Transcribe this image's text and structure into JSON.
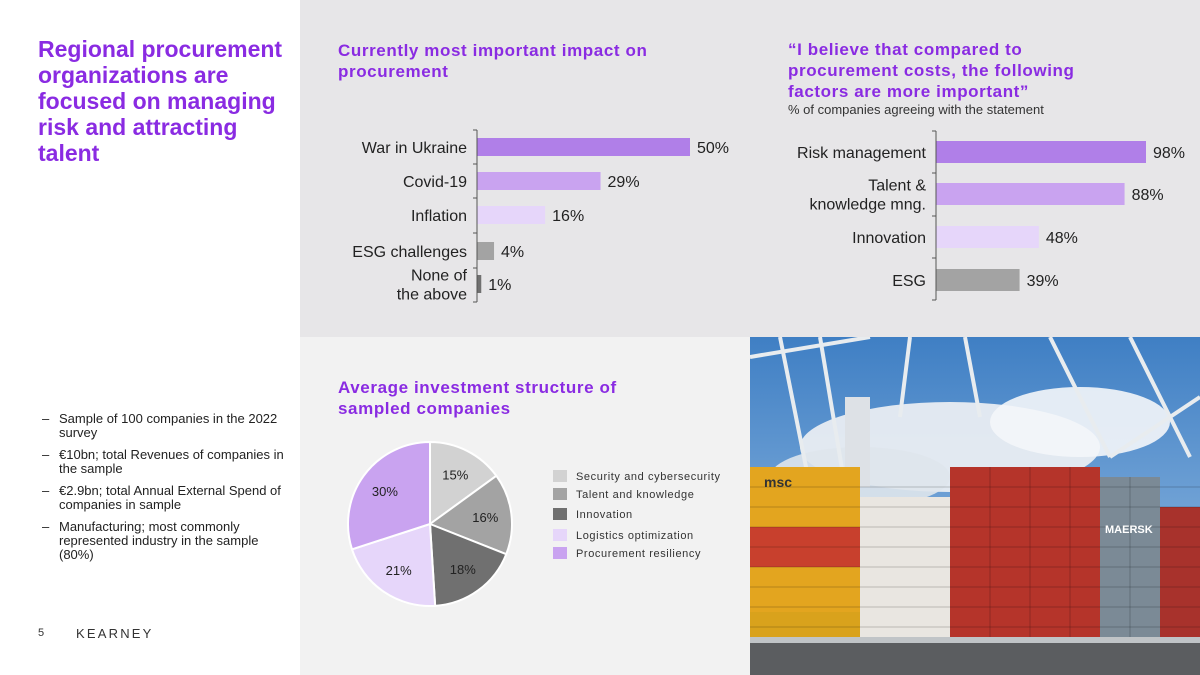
{
  "page": {
    "title": "Regional procurement organizations are focused on managing risk and attracting talent",
    "notes": [
      "Sample of 100 companies in the 2022 survey",
      "€10bn; total Revenues of companies in the sample",
      "€2.9bn; total Annual External Spend of companies in sample",
      "Manufacturing; most commonly represented industry in the sample (80%)"
    ],
    "note_dash": "–",
    "page_number": "5",
    "brand": "KEARNEY",
    "photo_labels": [
      "MAERSK",
      "msc"
    ]
  },
  "colors": {
    "accent": "#8a2be2",
    "purple_dark": "#b07fe8",
    "purple_mid": "#c9a3f0",
    "purple_light": "#e6d6fa",
    "grey_dark": "#707070",
    "grey_mid": "#a3a3a3",
    "grey_light": "#d2d2d2"
  },
  "chart_data": [
    {
      "id": "impact",
      "type": "bar",
      "orientation": "horizontal",
      "title": "Currently most important impact on procurement",
      "categories": [
        "War in Ukraine",
        "Covid-19",
        "Inflation",
        "ESG challenges",
        "None of the above"
      ],
      "category_lines": [
        [
          "War in Ukraine"
        ],
        [
          "Covid-19"
        ],
        [
          "Inflation"
        ],
        [
          "ESG challenges"
        ],
        [
          "None of",
          "the above"
        ]
      ],
      "values": [
        50,
        29,
        16,
        4,
        1
      ],
      "labels": [
        "50%",
        "29%",
        "16%",
        "4%",
        "1%"
      ],
      "unit": "%",
      "xlim": [
        0,
        50
      ]
    },
    {
      "id": "factors",
      "type": "bar",
      "orientation": "horizontal",
      "title": "“I believe that compared to procurement costs, the following factors are more important”",
      "subtitle": "% of companies agreeing with the statement",
      "categories": [
        "Risk management",
        "Talent & knowledge mng.",
        "Innovation",
        "ESG"
      ],
      "category_lines": [
        [
          "Risk management"
        ],
        [
          "Talent &",
          "knowledge mng."
        ],
        [
          "Innovation"
        ],
        [
          "ESG"
        ]
      ],
      "values": [
        98,
        88,
        48,
        39
      ],
      "labels": [
        "98%",
        "88%",
        "48%",
        "39%"
      ],
      "unit": "%",
      "xlim": [
        0,
        98
      ]
    },
    {
      "id": "investment",
      "type": "pie",
      "title": "Average investment structure of sampled companies",
      "categories": [
        "Security and cybersecurity",
        "Talent and knowledge",
        "Innovation",
        "Logistics optimization",
        "Procurement resiliency"
      ],
      "values": [
        15,
        16,
        18,
        21,
        30
      ],
      "labels": [
        "15%",
        "16%",
        "18%",
        "21%",
        "30%"
      ],
      "legend": "right"
    }
  ]
}
